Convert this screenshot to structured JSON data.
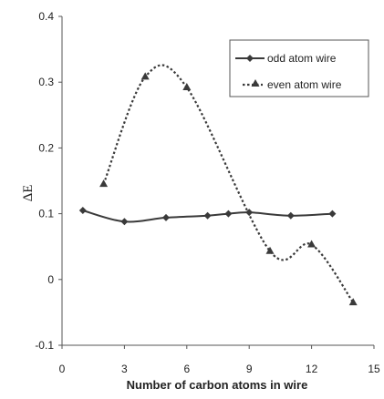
{
  "chart_data": {
    "type": "line",
    "title": "",
    "xlabel": "Number of carbon atoms in wire",
    "ylabel": "ΔE",
    "xlim": [
      0,
      15
    ],
    "ylim": [
      -0.1,
      0.4
    ],
    "x_ticks": [
      0,
      3,
      6,
      9,
      12,
      15
    ],
    "x_tick_labels": [
      "0",
      "3",
      "6",
      "9",
      "12",
      "15"
    ],
    "y_ticks": [
      -0.1,
      0,
      0.1,
      0.2,
      0.3,
      0.4
    ],
    "y_tick_labels": [
      "-0.1",
      "0",
      "0.1",
      "0.2",
      "0.3",
      "0.4"
    ],
    "grid": false,
    "legend_position": "top-right",
    "series": [
      {
        "name": "odd atom wire",
        "marker": "diamond",
        "line_style": "solid",
        "color": "#3a3a3a",
        "x": [
          1,
          3,
          5,
          7,
          8,
          9,
          11,
          13
        ],
        "y": [
          0.105,
          0.088,
          0.094,
          0.097,
          0.1,
          0.102,
          0.097,
          0.1
        ]
      },
      {
        "name": "even atom wire",
        "marker": "triangle",
        "line_style": "dotted",
        "color": "#3a3a3a",
        "x": [
          2,
          4,
          6,
          10,
          12,
          14
        ],
        "y": [
          0.145,
          0.308,
          0.292,
          0.043,
          0.053,
          -0.035
        ]
      }
    ]
  }
}
